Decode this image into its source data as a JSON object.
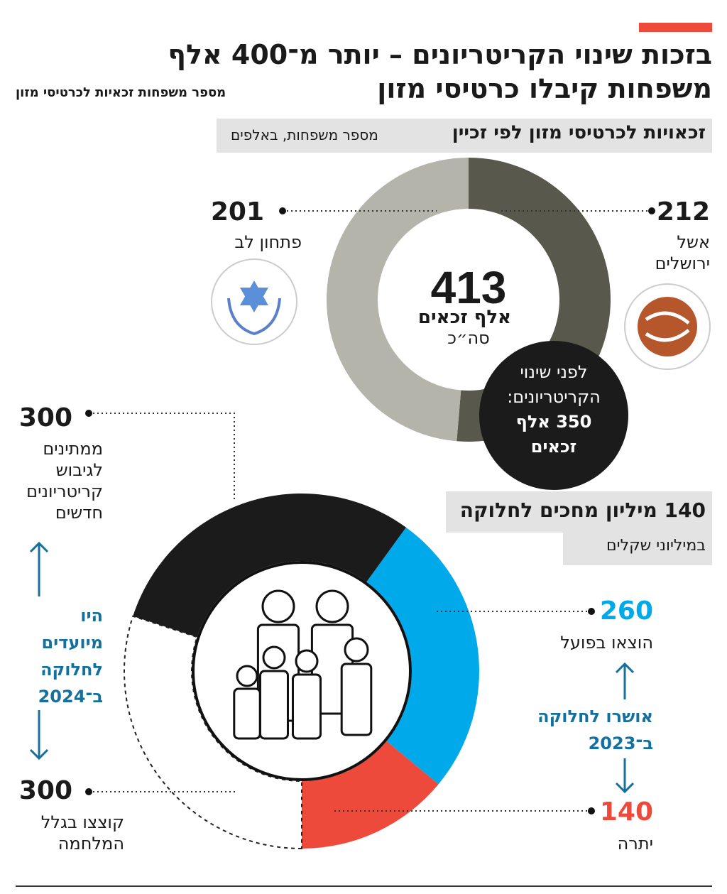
{
  "header": {
    "title_line1": "בזכות שינוי הקריטריונים – יותר מ־400 אלף",
    "title_line2": "משפחות קיבלו כרטיסי מזון",
    "subtitle": "מספר משפחות זכאיות לכרטיסי מזון"
  },
  "chart_data": [
    {
      "type": "donut",
      "title": "זכאויות לכרטיסי מזון לפי זכיין",
      "subtitle": "מספר משפחות, באלפים",
      "categories": [
        "אשל ירושלים",
        "פתחון לב"
      ],
      "values": [
        212,
        201
      ],
      "colors": [
        "#58584d",
        "#b4b4ab"
      ],
      "center_texts": [
        "413",
        "אלף זכאים",
        "סה״כ"
      ],
      "note": [
        "לפני שינוי",
        "הקריטריונים:",
        "350 אלף",
        "זכאים"
      ]
    },
    {
      "type": "donut",
      "title": "140 מיליון מחכים לחלוקה",
      "subtitle": "במיליוני שקלים",
      "categories": [
        "הוצאו בפועל",
        "יתרה",
        "קוצצו בגלל המלחמה",
        "ממתינים לגיבוש קריטריונים חדשים"
      ],
      "values": [
        260,
        140,
        300,
        300
      ],
      "colors": [
        "#00a9ea",
        "#ee4a3b",
        "#ffffff",
        "#1b1b1b"
      ],
      "annotations": [
        "אושרו לחלוקה ב־2023",
        "היו מיועדים לחלוקה ב־2024"
      ]
    }
  ]
}
